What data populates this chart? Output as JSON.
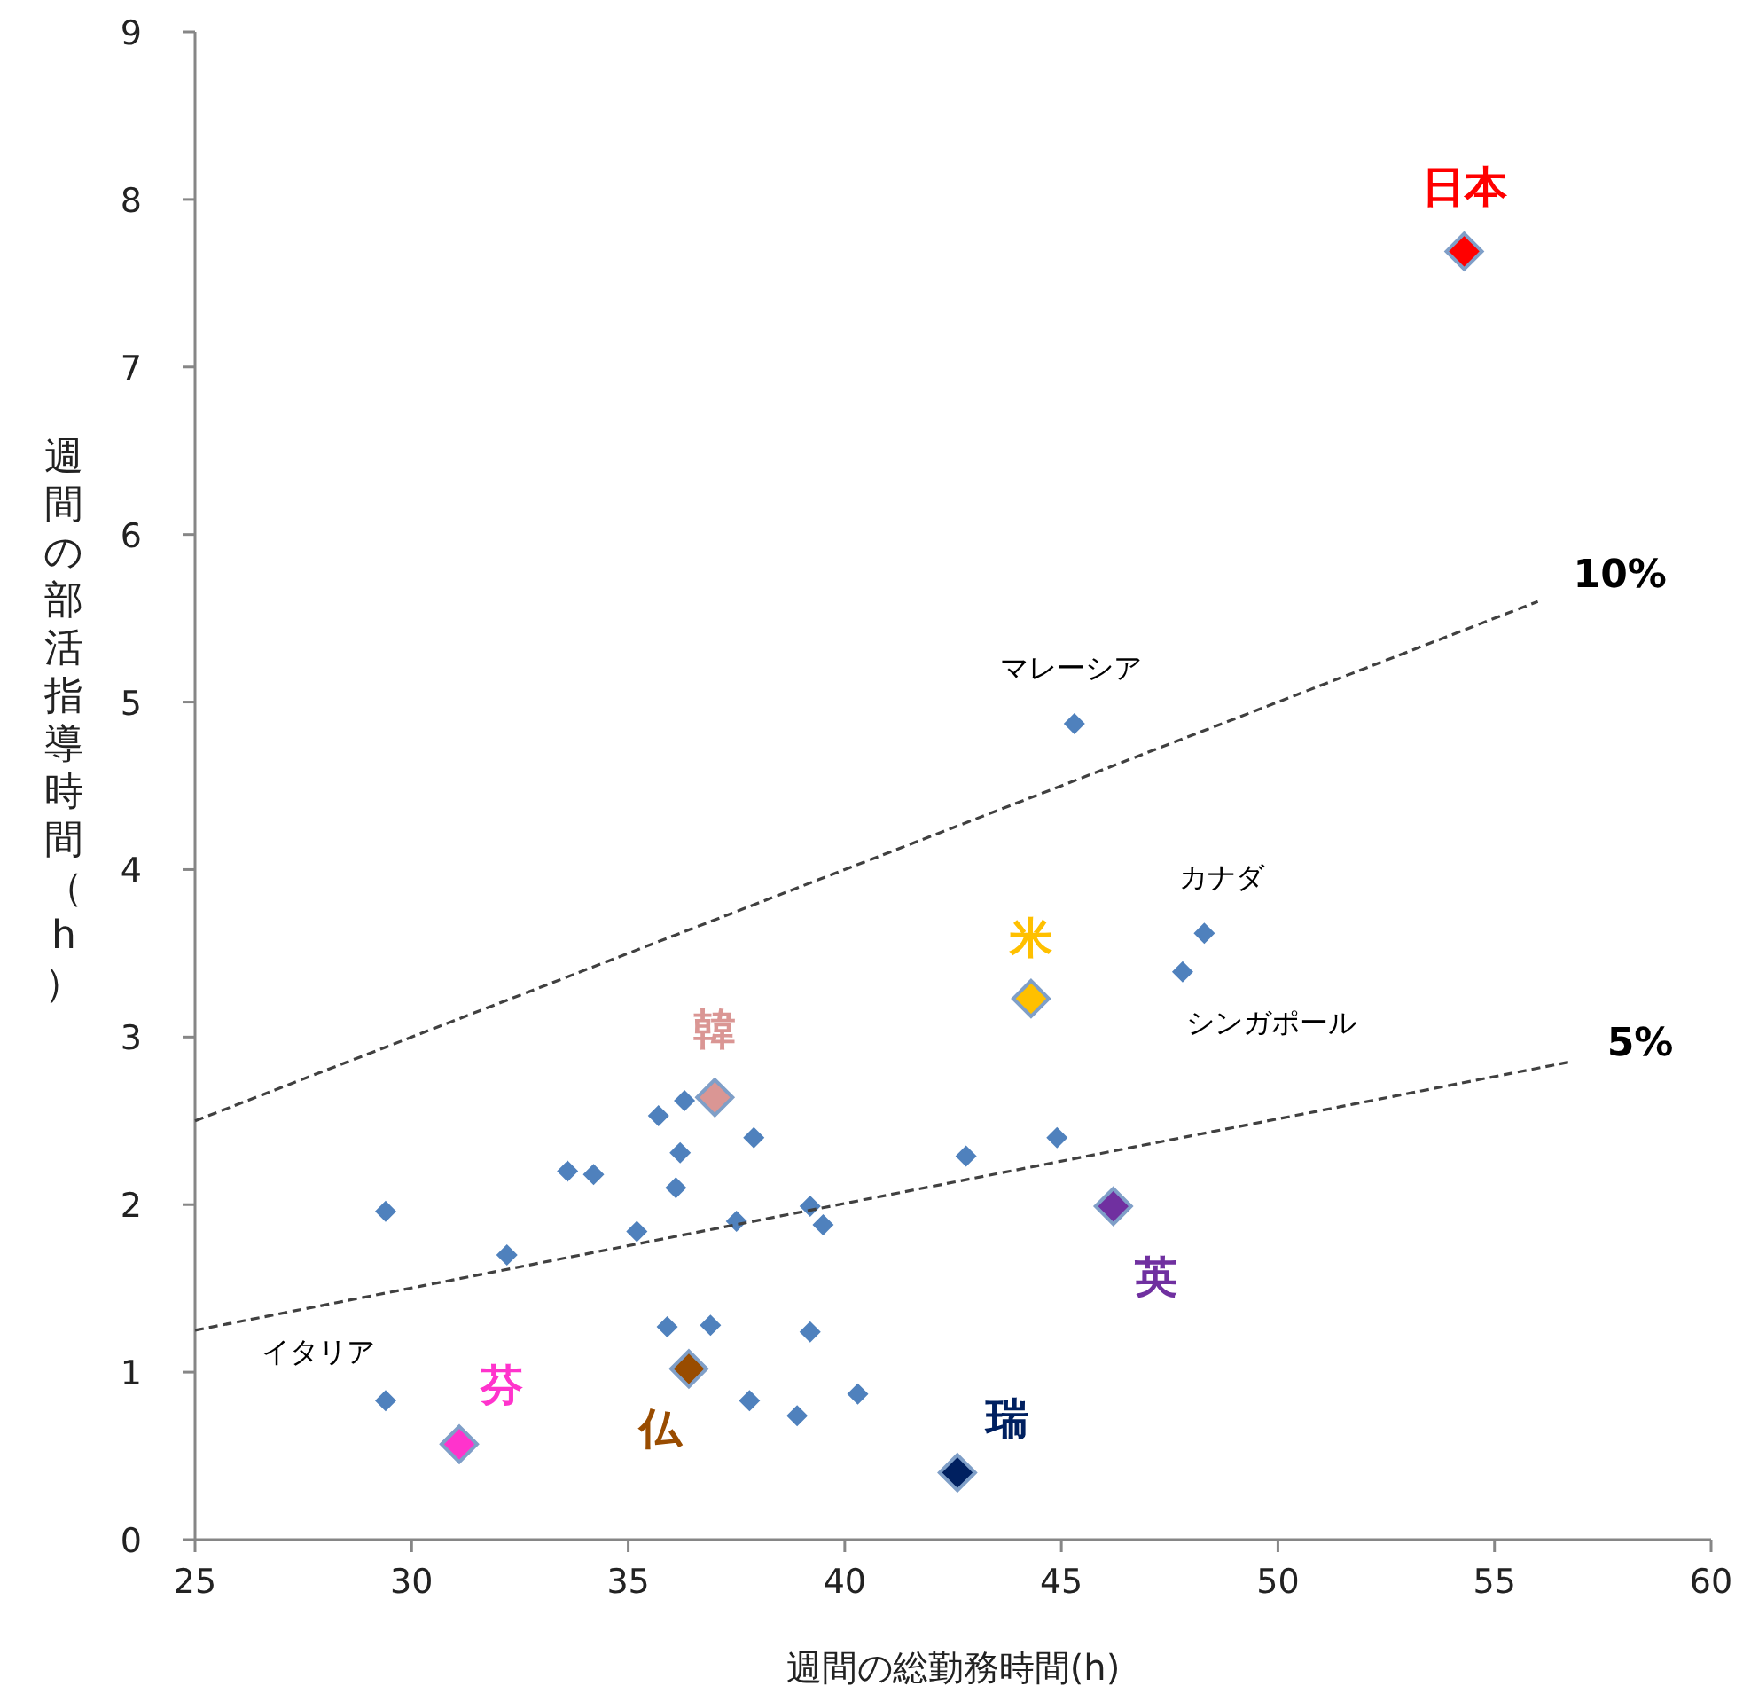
{
  "chart_data": {
    "type": "scatter",
    "xlabel": "週間の総勤務時間(h)",
    "ylabel": "週間の部活指導時間（h）",
    "xlim": [
      25,
      60
    ],
    "ylim": [
      0,
      9
    ],
    "xticks": [
      25,
      30,
      35,
      40,
      45,
      50,
      55,
      60
    ],
    "yticks": [
      0,
      1,
      2,
      3,
      4,
      5,
      6,
      7,
      8,
      9
    ],
    "grid": false,
    "marker": "diamond",
    "series": [
      {
        "color": "#4f81bd",
        "x": [
          29.4,
          32.2,
          33.6,
          34.2,
          35.2,
          35.7,
          36.3,
          36.2,
          36.1,
          35.9,
          36.9,
          37.9,
          37.5,
          37.8,
          38.9,
          39.2,
          39.5,
          39.2,
          40.3,
          42.8,
          44.9
        ],
        "values": [
          1.96,
          1.7,
          2.2,
          2.18,
          1.84,
          2.53,
          2.62,
          2.31,
          2.1,
          1.27,
          1.28,
          2.4,
          1.9,
          0.83,
          0.74,
          1.99,
          1.88,
          1.24,
          0.87,
          2.29,
          2.4
        ]
      },
      {
        "name": "イタリア",
        "color": "#4f81bd",
        "x": [
          29.4
        ],
        "values": [
          0.83
        ]
      },
      {
        "name": "マレーシア",
        "color": "#4f81bd",
        "x": [
          45.3
        ],
        "values": [
          4.87
        ]
      },
      {
        "name": "カナダ",
        "color": "#4f81bd",
        "x": [
          48.3
        ],
        "values": [
          3.62
        ]
      },
      {
        "name": "シンガポール",
        "color": "#4f81bd",
        "x": [
          47.8
        ],
        "values": [
          3.39
        ]
      },
      {
        "name": "日本",
        "color": "#ff0000",
        "x": [
          54.3
        ],
        "values": [
          7.69
        ]
      },
      {
        "name": "米",
        "color": "#ffc000",
        "x": [
          44.3
        ],
        "values": [
          3.23
        ]
      },
      {
        "name": "韓",
        "color": "#da9694",
        "x": [
          37.0
        ],
        "values": [
          2.64
        ]
      },
      {
        "name": "英",
        "color": "#7030a0",
        "x": [
          46.2
        ],
        "values": [
          1.99
        ]
      },
      {
        "name": "芬",
        "color": "#ff33cc",
        "x": [
          31.1
        ],
        "values": [
          0.57
        ]
      },
      {
        "name": "仏",
        "color": "#994c00",
        "x": [
          36.4
        ],
        "values": [
          1.02
        ]
      },
      {
        "name": "瑞",
        "color": "#002060",
        "x": [
          42.6
        ],
        "values": [
          0.4
        ]
      },
      {
        "name": "10%",
        "type": "line",
        "line_style": "dashed",
        "marker": "none",
        "color": "#404040",
        "x": [
          25,
          56
        ],
        "values": [
          2.5,
          5.6
        ]
      },
      {
        "name": "5%",
        "type": "line",
        "line_style": "dashed",
        "marker": "none",
        "color": "#404040",
        "x": [
          25,
          56.7
        ],
        "values": [
          1.25,
          2.85
        ]
      }
    ]
  }
}
